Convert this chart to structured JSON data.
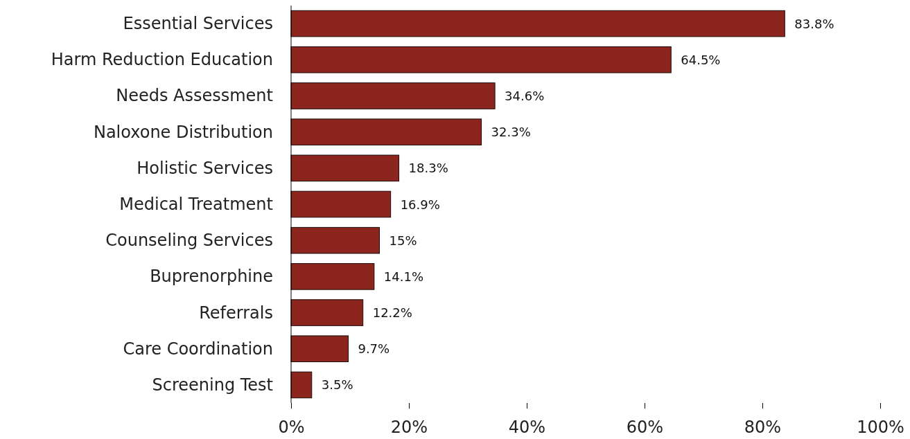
{
  "chart_data": {
    "type": "bar",
    "orientation": "horizontal",
    "categories": [
      "Essential Services",
      "Harm Reduction Education",
      "Needs Assessment",
      "Naloxone Distribution",
      "Holistic Services",
      "Medical Treatment",
      "Counseling Services",
      "Buprenorphine",
      "Referrals",
      "Care Coordination",
      "Screening Test"
    ],
    "values": [
      83.8,
      64.5,
      34.6,
      32.3,
      18.3,
      16.9,
      15,
      14.1,
      12.2,
      9.7,
      3.5
    ],
    "value_labels": [
      "83.8%",
      "64.5%",
      "34.6%",
      "32.3%",
      "18.3%",
      "16.9%",
      "15%",
      "14.1%",
      "12.2%",
      "9.7%",
      "3.5%"
    ],
    "color": "#8b251e",
    "xlim": [
      0,
      100
    ],
    "xticks": [
      {
        "value": 0,
        "label": "0%"
      },
      {
        "value": 20,
        "label": "20%"
      },
      {
        "value": 40,
        "label": "40%"
      },
      {
        "value": 60,
        "label": "60%"
      },
      {
        "value": 80,
        "label": "80%"
      },
      {
        "value": 100,
        "label": "100%"
      }
    ],
    "grid": false
  }
}
